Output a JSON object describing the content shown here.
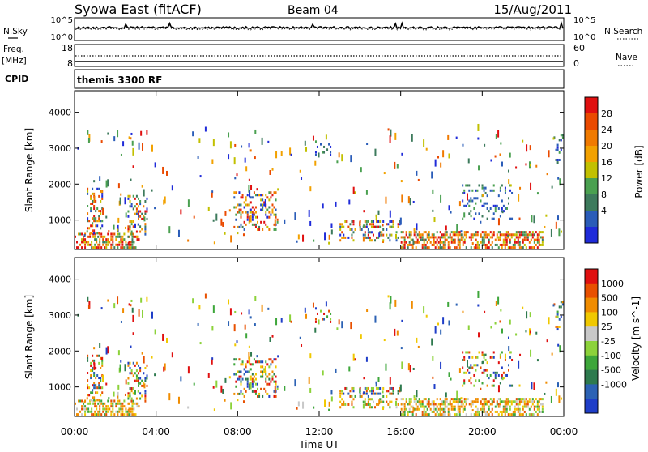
{
  "header": {
    "station": "Syowa East (fitACF)",
    "beam": "Beam 04",
    "date": "15/Aug/2011"
  },
  "noise_panel": {
    "left_label": "N.Sky",
    "right_label": "N.Search",
    "left_ticks": [
      "10^5",
      "10^0"
    ],
    "right_ticks": [
      "10^5",
      "10^0"
    ]
  },
  "freq_panel": {
    "left_label_line1": "Freq.",
    "left_label_line2": "[MHz]",
    "right_label": "Nave",
    "left_ticks": [
      "18",
      "8"
    ],
    "right_ticks": [
      "60",
      "0"
    ]
  },
  "cpid": {
    "label": "CPID",
    "value": "themis 3300 RF"
  },
  "colors": {
    "power": [
      "#1f2bd9",
      "#2a5cb8",
      "#3d7a5c",
      "#4aa050",
      "#c2c000",
      "#f2a100",
      "#f07a00",
      "#ea4a00",
      "#e01010"
    ],
    "velocity": [
      "#1f3ec8",
      "#2c62b4",
      "#2e7a4e",
      "#3da63a",
      "#8cd23a",
      "#c8c8c8",
      "#f0c800",
      "#f08c00",
      "#e85000",
      "#e01010"
    ]
  },
  "chart_data": [
    {
      "type": "heatmap",
      "name": "power-panel",
      "xlabel": "",
      "ylabel": "Slant Range [km]",
      "ylim": [
        180,
        4600
      ],
      "xlim": [
        0,
        24
      ],
      "y_ticks": [
        1000,
        2000,
        3000,
        4000
      ],
      "colorbar": {
        "label": "Power [dB]",
        "ticks": [
          "28",
          "24",
          "20",
          "16",
          "12",
          "8",
          "4"
        ],
        "range": [
          0,
          30
        ]
      },
      "echo_regions": [
        {
          "t0": 0.0,
          "t1": 3.2,
          "r0": 200,
          "r1": 650,
          "level": "high"
        },
        {
          "t0": 0.6,
          "t1": 1.4,
          "r0": 600,
          "r1": 1900,
          "level": "mixed"
        },
        {
          "t0": 2.6,
          "t1": 3.6,
          "r0": 500,
          "r1": 1700,
          "level": "mixed"
        },
        {
          "t0": 7.8,
          "t1": 10.0,
          "r0": 700,
          "r1": 1800,
          "level": "mixed"
        },
        {
          "t0": 11.8,
          "t1": 12.6,
          "r0": 2700,
          "r1": 3300,
          "level": "low"
        },
        {
          "t0": 13.0,
          "t1": 16.0,
          "r0": 400,
          "r1": 1000,
          "level": "mixed"
        },
        {
          "t0": 16.0,
          "t1": 23.0,
          "r0": 200,
          "r1": 700,
          "level": "high"
        },
        {
          "t0": 19.0,
          "t1": 21.5,
          "r0": 1000,
          "r1": 2000,
          "level": "low"
        },
        {
          "t0": 23.5,
          "t1": 24.0,
          "r0": 2500,
          "r1": 3400,
          "level": "low"
        }
      ]
    },
    {
      "type": "heatmap",
      "name": "velocity-panel",
      "xlabel": "Time UT",
      "ylabel": "Slant Range [km]",
      "ylim": [
        180,
        4600
      ],
      "xlim": [
        0,
        24
      ],
      "y_ticks": [
        1000,
        2000,
        3000,
        4000
      ],
      "x_ticks": [
        "00:00",
        "04:00",
        "08:00",
        "12:00",
        "16:00",
        "20:00",
        "00:00"
      ],
      "colorbar": {
        "label": "Velocity [m s^-1]",
        "ticks": [
          "1000",
          "500",
          "100",
          "25",
          "-25",
          "-100",
          "-500",
          "-1000"
        ],
        "range": [
          -1000,
          1000
        ]
      }
    }
  ]
}
